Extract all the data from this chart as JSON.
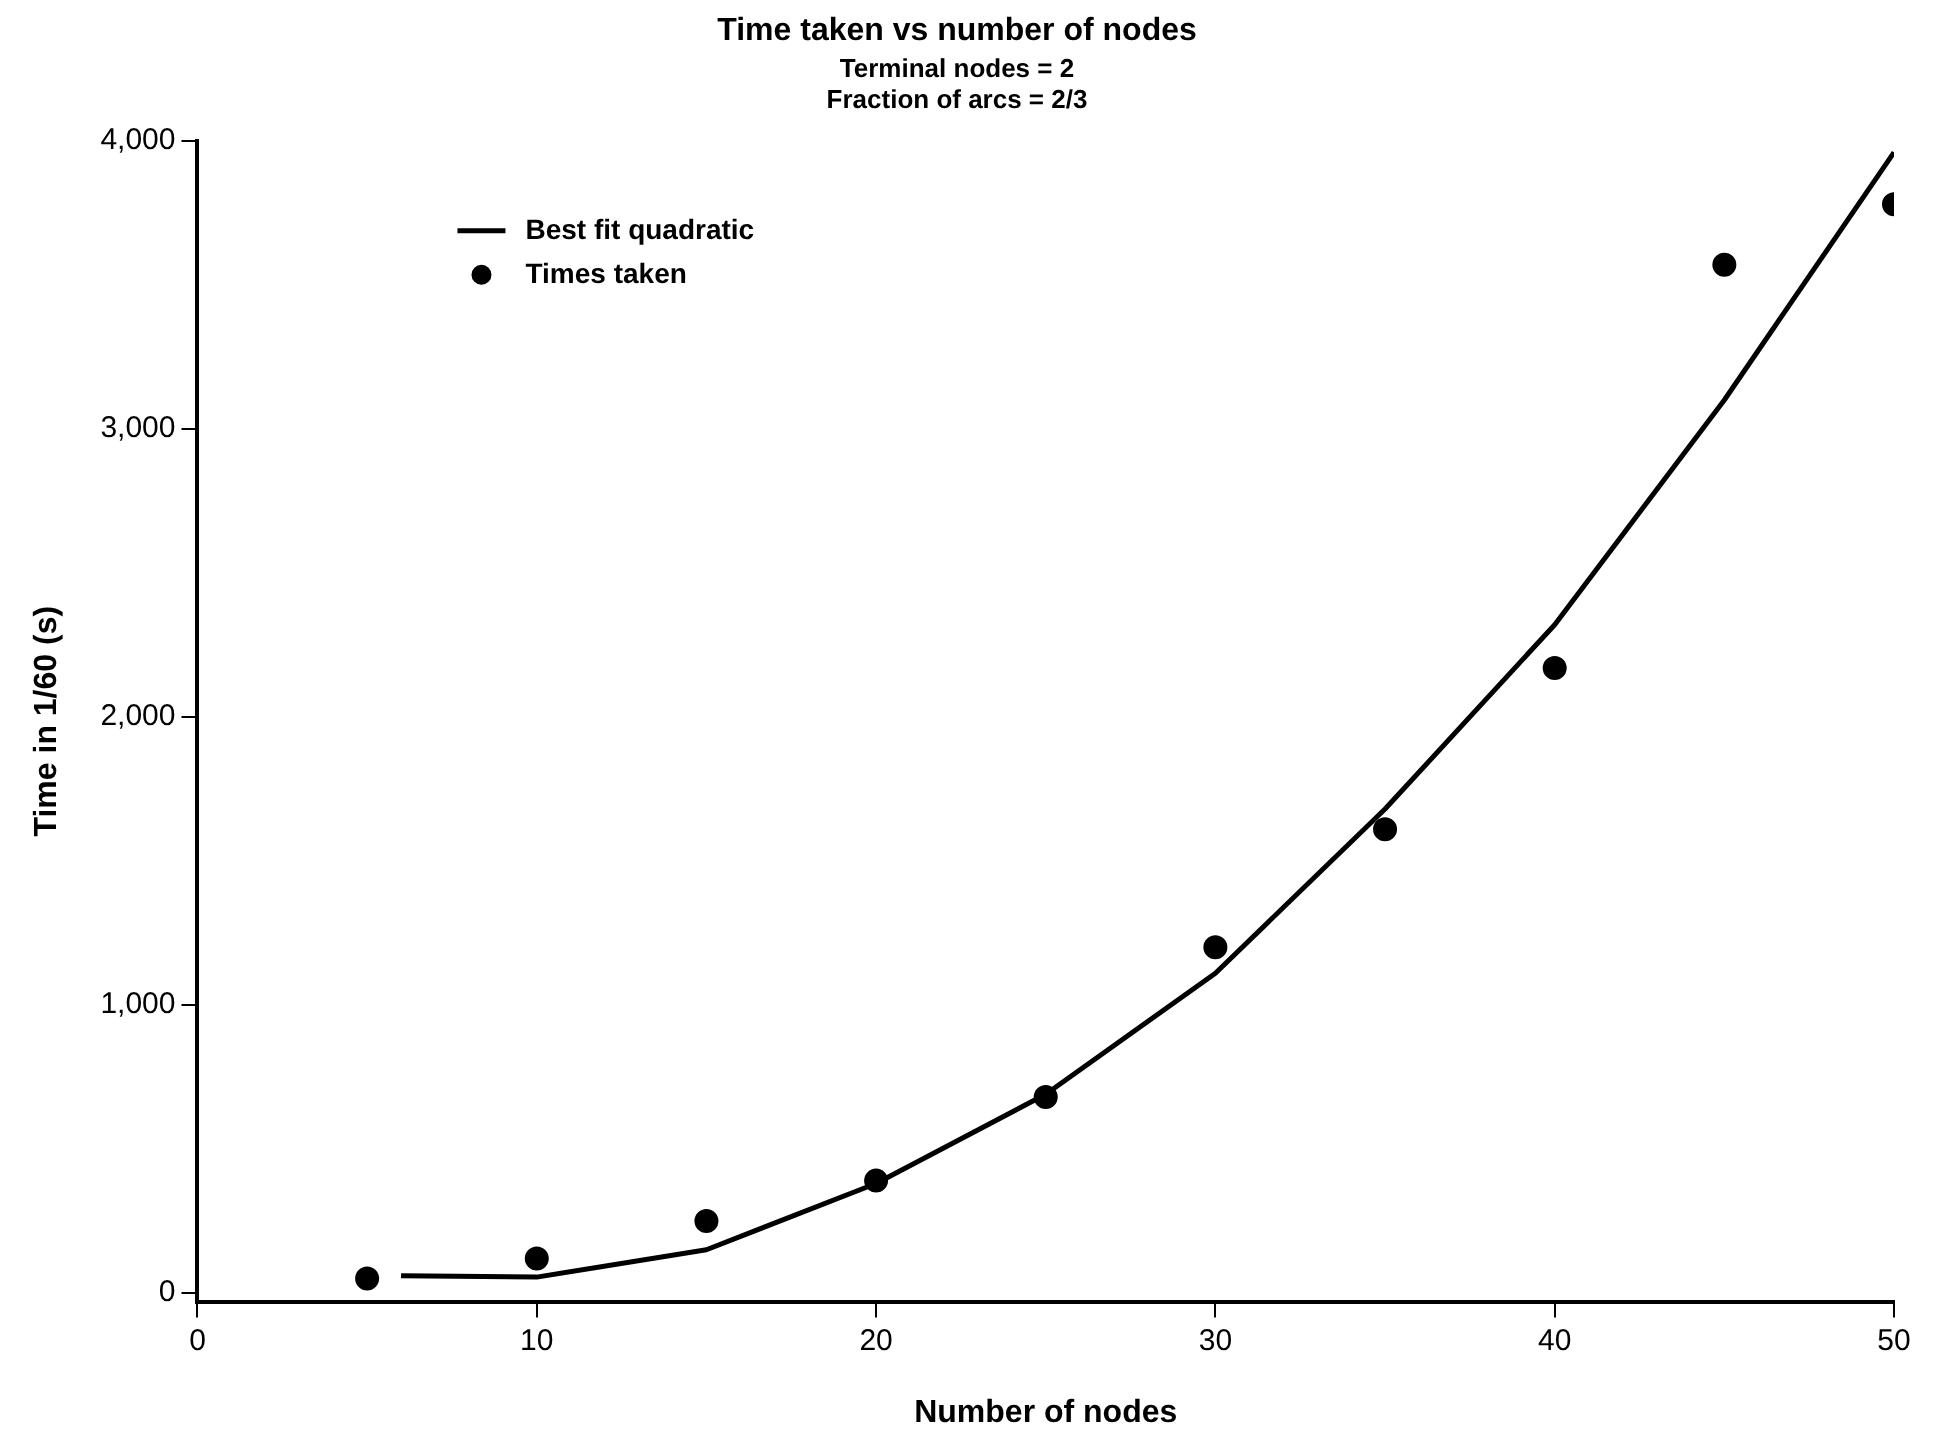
{
  "chart_data": {
    "type": "scatter",
    "title": "Time taken vs number of nodes",
    "subtitle": "Terminal nodes = 2\nFraction of arcs = 2/3",
    "xlabel": "Number of nodes",
    "ylabel": "Time in 1/60 (s)",
    "xlim": [
      0,
      50
    ],
    "xticks": [
      0,
      10,
      20,
      30,
      40,
      50
    ],
    "ylim": [
      -30,
      4000
    ],
    "yticks": [
      {
        "value": 0,
        "label": "0"
      },
      {
        "value": 1000,
        "label": "1,000"
      },
      {
        "value": 2000,
        "label": "2,000"
      },
      {
        "value": 3000,
        "label": "3,000"
      },
      {
        "value": 4000,
        "label": "4,000"
      }
    ],
    "grid": false,
    "legend": "top left",
    "series": [
      {
        "name": "Best fit quadratic",
        "type": "line",
        "color": "#000000",
        "marker": "none",
        "line_style": "solid",
        "x": [
          6,
          10,
          15,
          20,
          25,
          30,
          35,
          40,
          45,
          50
        ],
        "values": [
          60,
          55,
          150,
          380,
          690,
          1110,
          1680,
          2320,
          3100,
          3960
        ]
      },
      {
        "name": "Times taken",
        "type": "scatter",
        "color": "#000000",
        "marker": "circle",
        "x": [
          5,
          10,
          15,
          20,
          25,
          30,
          35,
          40,
          45,
          50
        ],
        "values": [
          50,
          120,
          250,
          390,
          680,
          1200,
          1610,
          2170,
          3570,
          3780
        ]
      }
    ]
  }
}
